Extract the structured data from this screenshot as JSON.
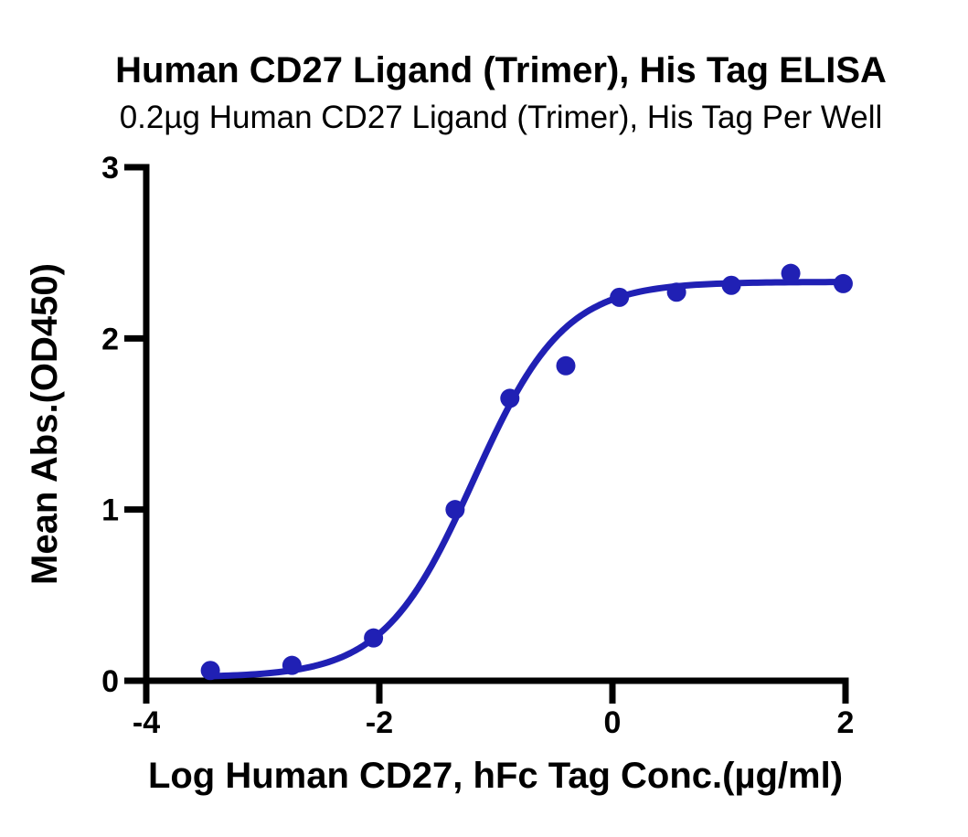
{
  "figure": {
    "background": "#ffffff"
  },
  "colors": {
    "series_blue": "#2020B4",
    "axis_black": "#000000",
    "text_black": "#000000"
  },
  "chart_data": {
    "type": "scatter",
    "title": "Human CD27 Ligand (Trimer), His Tag ELISA",
    "subtitle": "0.2µg Human CD27 Ligand (Trimer), His Tag Per Well",
    "xlabel": "Log Human CD27, hFc Tag Conc.(µg/ml)",
    "ylabel": "Mean Abs.(OD450)",
    "xlim": [
      -4,
      2
    ],
    "ylim": [
      0,
      3
    ],
    "x_ticks": [
      -4,
      -2,
      0,
      2
    ],
    "y_ticks": [
      0,
      1,
      2,
      3
    ],
    "grid": false,
    "legend_position": "none",
    "series": [
      {
        "name": "Human CD27, hFc Tag",
        "marker": "circle",
        "color": "#2020B4",
        "points": [
          {
            "x": -3.45,
            "y": 0.06
          },
          {
            "x": -2.75,
            "y": 0.09
          },
          {
            "x": -2.05,
            "y": 0.25
          },
          {
            "x": -1.35,
            "y": 1.0
          },
          {
            "x": -0.88,
            "y": 1.65
          },
          {
            "x": -0.4,
            "y": 1.84
          },
          {
            "x": 0.06,
            "y": 2.24
          },
          {
            "x": 0.55,
            "y": 2.27
          },
          {
            "x": 1.02,
            "y": 2.31
          },
          {
            "x": 1.53,
            "y": 2.38
          },
          {
            "x": 1.98,
            "y": 2.32
          }
        ]
      }
    ],
    "curve_fit": {
      "model": "4PL",
      "bottom": 0.02,
      "top": 2.33,
      "logEC50": -1.19,
      "hillslope": 1.12,
      "x_range": [
        -3.45,
        1.98
      ],
      "color": "#2020B4"
    }
  }
}
